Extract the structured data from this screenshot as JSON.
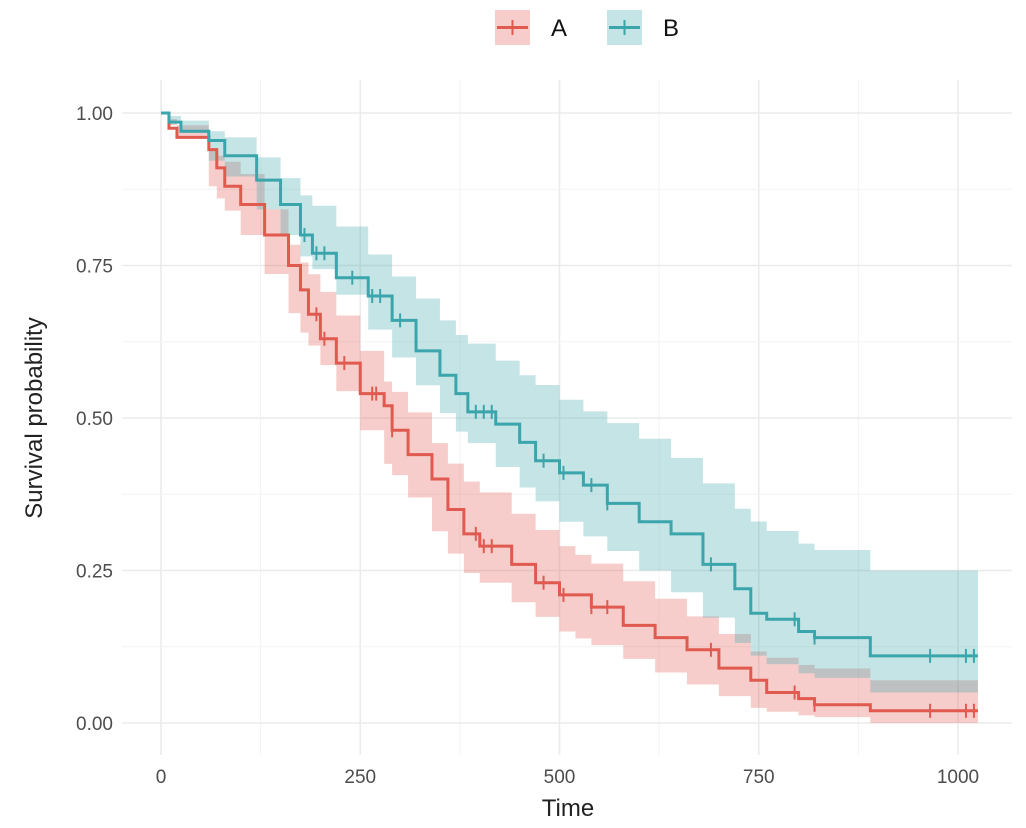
{
  "chart_data": {
    "type": "line",
    "subtype": "kaplan-meier step curves with confidence bands",
    "xlabel": "Time",
    "ylabel": "Survival probability",
    "xlim": [
      0,
      1030
    ],
    "ylim": [
      0,
      1
    ],
    "x_ticks": [
      "0",
      "250",
      "500",
      "750",
      "1000"
    ],
    "y_ticks": [
      "0.00",
      "0.25",
      "0.50",
      "0.75",
      "1.00"
    ],
    "grid": true,
    "legend": {
      "position": "top",
      "entries": [
        "A",
        "B"
      ]
    },
    "series": [
      {
        "name": "A",
        "color": "#E05A50",
        "x": [
          0,
          10,
          20,
          60,
          70,
          80,
          100,
          130,
          160,
          175,
          185,
          200,
          220,
          250,
          280,
          290,
          310,
          340,
          360,
          380,
          400,
          440,
          470,
          500,
          520,
          540,
          580,
          620,
          660,
          700,
          740,
          760,
          800,
          820,
          890,
          1025
        ],
        "y": [
          1,
          0.975,
          0.96,
          0.94,
          0.91,
          0.88,
          0.85,
          0.8,
          0.75,
          0.71,
          0.67,
          0.63,
          0.59,
          0.54,
          0.52,
          0.48,
          0.44,
          0.4,
          0.35,
          0.31,
          0.29,
          0.26,
          0.23,
          0.21,
          0.21,
          0.19,
          0.16,
          0.14,
          0.12,
          0.09,
          0.07,
          0.05,
          0.04,
          0.03,
          0.02,
          0.02
        ],
        "ci_x": [
          0,
          100,
          250,
          375,
          500,
          625,
          750,
          885,
          1025
        ],
        "ci_upper": [
          1,
          0.9,
          0.61,
          0.4,
          0.29,
          0.2,
          0.11,
          0.07,
          0.07
        ],
        "ci_lower": [
          1,
          0.8,
          0.48,
          0.25,
          0.15,
          0.08,
          0.02,
          0.0,
          0.0
        ],
        "censored": [
          195,
          205,
          230,
          265,
          270,
          290,
          395,
          405,
          415,
          480,
          505,
          540,
          560,
          690,
          795,
          820,
          965,
          1010,
          1020
        ]
      },
      {
        "name": "B",
        "color": "#3BA5AC",
        "x": [
          0,
          10,
          25,
          60,
          80,
          120,
          150,
          175,
          190,
          220,
          260,
          290,
          320,
          350,
          370,
          385,
          420,
          450,
          470,
          500,
          530,
          560,
          600,
          640,
          680,
          720,
          740,
          760,
          800,
          820,
          890,
          1025
        ],
        "y": [
          1,
          0.985,
          0.97,
          0.955,
          0.93,
          0.89,
          0.85,
          0.8,
          0.77,
          0.73,
          0.7,
          0.66,
          0.61,
          0.57,
          0.54,
          0.51,
          0.49,
          0.46,
          0.43,
          0.41,
          0.39,
          0.36,
          0.33,
          0.31,
          0.26,
          0.22,
          0.18,
          0.17,
          0.15,
          0.14,
          0.11,
          0.11
        ],
        "ci_x": [
          0,
          100,
          250,
          375,
          500,
          625,
          750,
          885,
          1025
        ],
        "ci_upper": [
          1,
          0.95,
          0.78,
          0.63,
          0.53,
          0.45,
          0.32,
          0.25,
          0.25
        ],
        "ci_lower": [
          1,
          0.87,
          0.66,
          0.47,
          0.33,
          0.23,
          0.1,
          0.05,
          0.05
        ],
        "censored": [
          180,
          195,
          205,
          240,
          265,
          275,
          300,
          395,
          405,
          415,
          480,
          505,
          540,
          560,
          690,
          795,
          820,
          965,
          1010,
          1020
        ]
      }
    ]
  }
}
